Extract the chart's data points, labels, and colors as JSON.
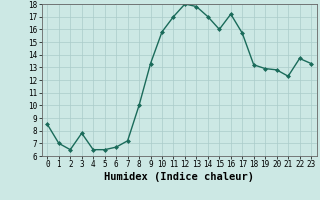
{
  "x": [
    0,
    1,
    2,
    3,
    4,
    5,
    6,
    7,
    8,
    9,
    10,
    11,
    12,
    13,
    14,
    15,
    16,
    17,
    18,
    19,
    20,
    21,
    22,
    23
  ],
  "y": [
    8.5,
    7.0,
    6.5,
    7.8,
    6.5,
    6.5,
    6.7,
    7.2,
    10.0,
    13.3,
    15.8,
    17.0,
    18.0,
    17.8,
    17.0,
    16.0,
    17.2,
    15.7,
    13.2,
    12.9,
    12.8,
    12.3,
    13.7,
    13.3
  ],
  "line_color": "#1a6b5a",
  "marker": "D",
  "marker_size": 2.0,
  "bg_color": "#cce8e4",
  "grid_color": "#aaccca",
  "xlabel": "Humidex (Indice chaleur)",
  "ylabel": "",
  "xlim": [
    -0.5,
    23.5
  ],
  "ylim": [
    6,
    18
  ],
  "yticks": [
    6,
    7,
    8,
    9,
    10,
    11,
    12,
    13,
    14,
    15,
    16,
    17,
    18
  ],
  "xticks": [
    0,
    1,
    2,
    3,
    4,
    5,
    6,
    7,
    8,
    9,
    10,
    11,
    12,
    13,
    14,
    15,
    16,
    17,
    18,
    19,
    20,
    21,
    22,
    23
  ],
  "tick_fontsize": 5.5,
  "label_fontsize": 7.5,
  "linewidth": 1.0
}
